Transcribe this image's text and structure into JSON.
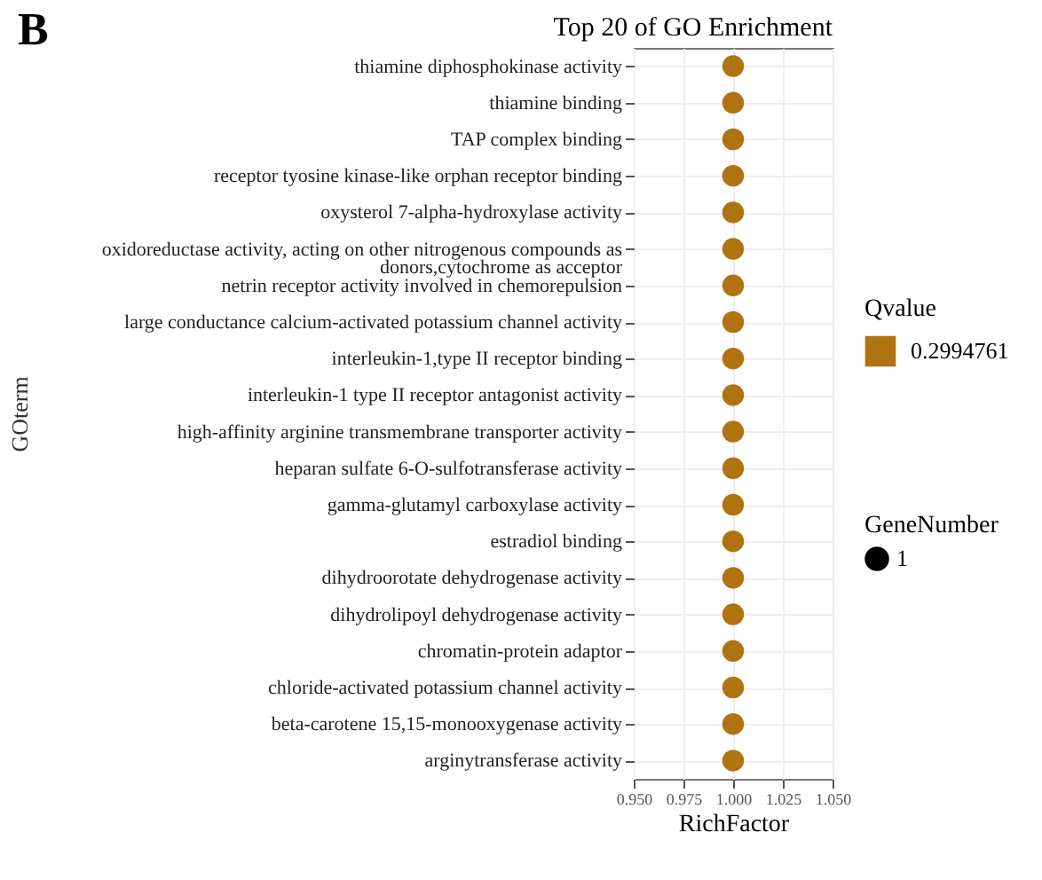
{
  "chart_data": {
    "type": "scatter",
    "orientation": "horizontal",
    "title": "Top 20 of  GO Enrichment",
    "xlabel": "RichFactor",
    "ylabel": "GOterm",
    "annotations": [
      "B",
      "GeneNumber"
    ],
    "categories": [
      "thiamine diphosphokinase activity",
      "thiamine binding",
      "TAP complex binding",
      "receptor tyosine kinase-like orphan receptor binding",
      "oxysterol 7-alpha-hydroxylase activity",
      "oxidoreductase activity, acting on other nitrogenous compounds as\ndonors,cytochrome as acceptor",
      "netrin receptor activity involved in chemorepulsion",
      "large conductance calcium-activated potassium channel activity",
      "interleukin-1,type II receptor binding",
      "interleukin-1 type II receptor antagonist activity",
      "high-affinity arginine transmembrane transporter activity",
      "heparan sulfate 6-O-sulfotransferase activity",
      "gamma-glutamyl carboxylase activity",
      "estradiol binding",
      "dihydroorotate dehydrogenase activity",
      "dihydrolipoyl dehydrogenase activity",
      "chromatin-protein adaptor",
      "chloride-activated potassium channel activity",
      "beta-carotene 15,15-monooxygenase activity",
      "arginytransferase activity"
    ],
    "series": [
      {
        "name": "0.2994761",
        "color": "#b07312",
        "values": [
          1,
          1,
          1,
          1,
          1,
          1,
          1,
          1,
          1,
          1,
          1,
          1,
          1,
          1,
          1,
          1,
          1,
          1,
          1,
          1
        ],
        "sizes": [
          1,
          1,
          1,
          1,
          1,
          1,
          1,
          1,
          1,
          1,
          1,
          1,
          1,
          1,
          1,
          1,
          1,
          1,
          1,
          1
        ]
      }
    ],
    "legend_title": "Qvalue",
    "size_legend": [
      1
    ],
    "xlim": [
      0.95,
      1.05
    ],
    "xticks": [
      {
        "value": 0.95,
        "label": "0.950"
      },
      {
        "value": 0.975,
        "label": "0.975"
      },
      {
        "value": 1.0,
        "label": "1.000"
      },
      {
        "value": 1.025,
        "label": "1.025"
      },
      {
        "value": 1.05,
        "label": "1.050"
      }
    ],
    "grid": true,
    "marker": "circle",
    "legend": "right"
  }
}
